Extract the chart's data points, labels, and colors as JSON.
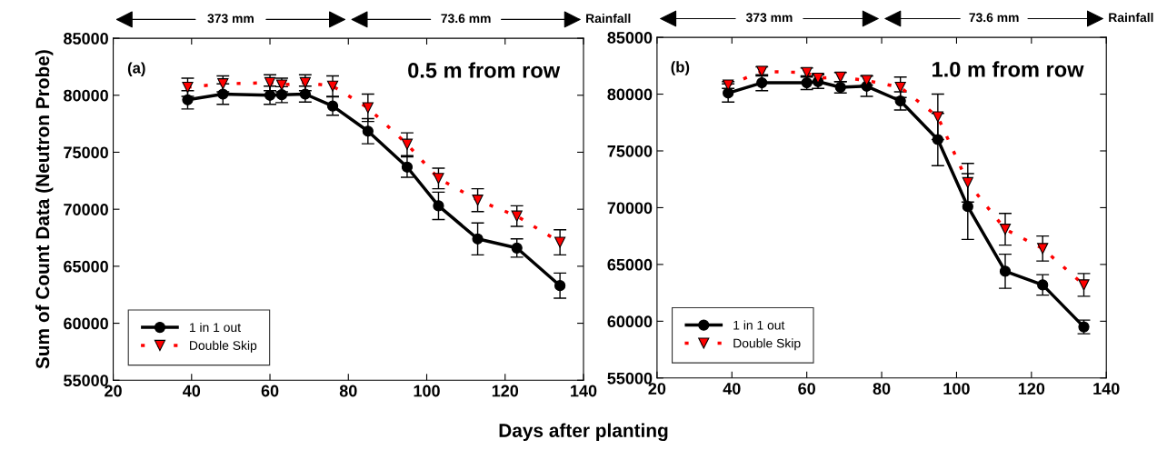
{
  "chart_data": [
    {
      "type": "line",
      "ylabel": "Sum of Count Data (Neutron Probe)",
      "xlabel": "Days after planting",
      "xlim": [
        20,
        140
      ],
      "ylim": [
        55000,
        85000
      ],
      "xticks": [
        20,
        40,
        60,
        80,
        100,
        120,
        140
      ],
      "yticks": [
        55000,
        60000,
        65000,
        70000,
        75000,
        80000,
        85000
      ],
      "grid": false,
      "legend": "bottom left",
      "annotations": [
        "(a)",
        "0.5 m from row",
        "373 mm",
        "73.6 mm",
        "Rainfall"
      ],
      "x": [
        39,
        48,
        60,
        63,
        69,
        76,
        85,
        95,
        103,
        113,
        123,
        134
      ],
      "series": [
        {
          "name": "1 in 1 out",
          "color": "#000000",
          "marker": "circle",
          "line_style": "solid",
          "values": [
            79600,
            80100,
            80000,
            80050,
            80100,
            79050,
            76850,
            73700,
            70300,
            67400,
            66600,
            63300
          ],
          "errors": [
            800,
            900,
            800,
            700,
            700,
            800,
            1100,
            900,
            1200,
            1400,
            800,
            1100
          ]
        },
        {
          "name": "Double Skip",
          "color": "#ff0000",
          "marker": "triangle",
          "line_style": "dashed",
          "values": [
            80700,
            81000,
            81100,
            80900,
            81100,
            80800,
            78900,
            75700,
            72700,
            70800,
            69400,
            67100
          ],
          "errors": [
            800,
            700,
            700,
            600,
            700,
            900,
            1200,
            1000,
            900,
            1000,
            900,
            1100
          ]
        }
      ]
    },
    {
      "type": "line",
      "xlim": [
        20,
        140
      ],
      "ylim": [
        55000,
        85000
      ],
      "xticks": [
        20,
        40,
        60,
        80,
        100,
        120,
        140
      ],
      "yticks": [
        55000,
        60000,
        65000,
        70000,
        75000,
        80000,
        85000
      ],
      "grid": false,
      "legend": "bottom left",
      "annotations": [
        "(b)",
        "1.0 m from row",
        "373 mm",
        "73.6 mm",
        "Rainfall"
      ],
      "x": [
        39,
        48,
        60,
        63,
        69,
        76,
        85,
        95,
        103,
        113,
        123,
        134
      ],
      "series": [
        {
          "name": "1 in 1 out",
          "color": "#000000",
          "marker": "circle",
          "line_style": "solid",
          "values": [
            80100,
            81000,
            81000,
            81100,
            80600,
            80700,
            79400,
            76000,
            70100,
            64400,
            63200,
            59500
          ],
          "errors": [
            800,
            700,
            600,
            600,
            500,
            900,
            800,
            2300,
            2900,
            1500,
            900,
            600
          ]
        },
        {
          "name": "Double Skip",
          "color": "#ff0000",
          "marker": "triangle",
          "line_style": "dashed",
          "values": [
            80800,
            82000,
            81900,
            81400,
            81500,
            81200,
            80600,
            78000,
            72200,
            68100,
            66400,
            63200
          ],
          "errors": [
            300,
            400,
            400,
            400,
            400,
            400,
            900,
            2000,
            1700,
            1400,
            1100,
            1000
          ]
        }
      ]
    }
  ]
}
